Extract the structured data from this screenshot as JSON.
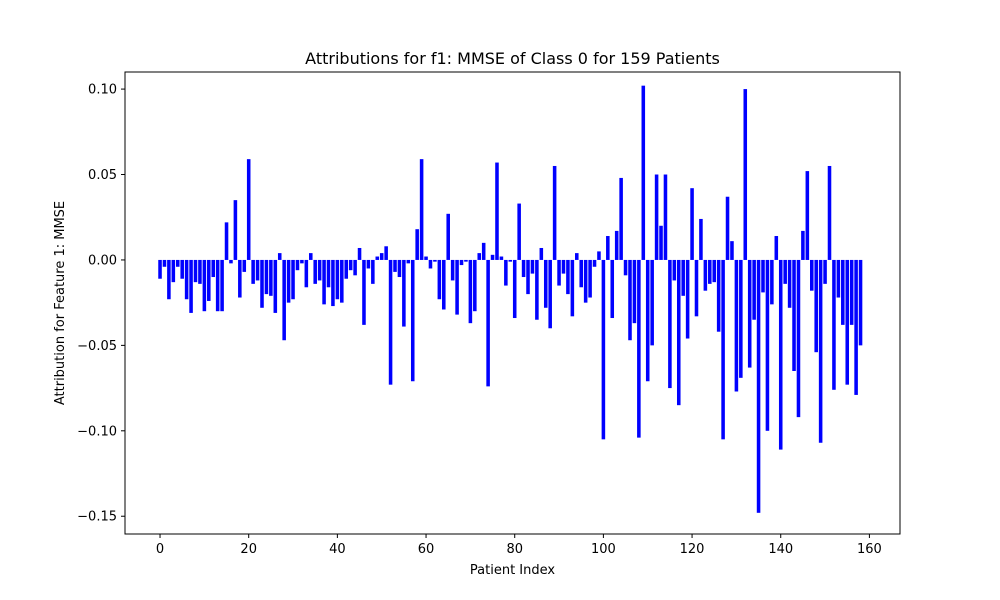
{
  "chart_data": {
    "type": "bar",
    "title": "Attributions for f1: MMSE of Class 0 for 159 Patients",
    "xlabel": "Patient Index",
    "ylabel": "Attribution for Feature 1: MMSE",
    "xlim": [
      -7.9,
      166.9
    ],
    "ylim": [
      -0.1604,
      0.11
    ],
    "xticks": [
      0,
      20,
      40,
      60,
      80,
      100,
      120,
      140,
      160
    ],
    "xtick_labels": [
      "0",
      "20",
      "40",
      "60",
      "80",
      "100",
      "120",
      "140",
      "160"
    ],
    "yticks": [
      -0.15,
      -0.1,
      -0.05,
      0.0,
      0.05,
      0.1
    ],
    "ytick_labels": [
      "−0.15",
      "−0.10",
      "−0.05",
      "0.00",
      "0.05",
      "0.10"
    ],
    "bar_color": "#0000ff",
    "grid": false,
    "x": [
      0,
      1,
      2,
      3,
      4,
      5,
      6,
      7,
      8,
      9,
      10,
      11,
      12,
      13,
      14,
      15,
      16,
      17,
      18,
      19,
      20,
      21,
      22,
      23,
      24,
      25,
      26,
      27,
      28,
      29,
      30,
      31,
      32,
      33,
      34,
      35,
      36,
      37,
      38,
      39,
      40,
      41,
      42,
      43,
      44,
      45,
      46,
      47,
      48,
      49,
      50,
      51,
      52,
      53,
      54,
      55,
      56,
      57,
      58,
      59,
      60,
      61,
      62,
      63,
      64,
      65,
      66,
      67,
      68,
      69,
      70,
      71,
      72,
      73,
      74,
      75,
      76,
      77,
      78,
      79,
      80,
      81,
      82,
      83,
      84,
      85,
      86,
      87,
      88,
      89,
      90,
      91,
      92,
      93,
      94,
      95,
      96,
      97,
      98,
      99,
      100,
      101,
      102,
      103,
      104,
      105,
      106,
      107,
      108,
      109,
      110,
      111,
      112,
      113,
      114,
      115,
      116,
      117,
      118,
      119,
      120,
      121,
      122,
      123,
      124,
      125,
      126,
      127,
      128,
      129,
      130,
      131,
      132,
      133,
      134,
      135,
      136,
      137,
      138,
      139,
      140,
      141,
      142,
      143,
      144,
      145,
      146,
      147,
      148,
      149,
      150,
      151,
      152,
      153,
      154,
      155,
      156,
      157,
      158
    ],
    "values": [
      -0.011,
      -0.004,
      -0.023,
      -0.013,
      -0.004,
      -0.011,
      -0.023,
      -0.031,
      -0.013,
      -0.014,
      -0.03,
      -0.024,
      -0.01,
      -0.03,
      -0.03,
      0.022,
      -0.002,
      0.035,
      -0.022,
      -0.007,
      0.059,
      -0.014,
      -0.012,
      -0.028,
      -0.02,
      -0.021,
      -0.031,
      0.004,
      -0.047,
      -0.025,
      -0.023,
      -0.006,
      -0.002,
      -0.016,
      0.004,
      -0.014,
      -0.012,
      -0.026,
      -0.016,
      -0.027,
      -0.023,
      -0.025,
      -0.011,
      -0.006,
      -0.009,
      0.007,
      -0.038,
      -0.005,
      -0.014,
      0.002,
      0.004,
      0.008,
      -0.073,
      -0.007,
      -0.01,
      -0.039,
      -0.002,
      -0.071,
      0.018,
      0.059,
      0.002,
      -0.005,
      -0.001,
      -0.023,
      -0.029,
      0.027,
      -0.012,
      -0.032,
      -0.003,
      -0.001,
      -0.037,
      -0.03,
      0.004,
      0.01,
      -0.074,
      0.003,
      0.057,
      0.002,
      -0.015,
      -0.001,
      -0.034,
      0.033,
      -0.01,
      -0.02,
      -0.008,
      -0.035,
      0.007,
      -0.028,
      -0.04,
      0.055,
      -0.015,
      -0.008,
      -0.02,
      -0.033,
      0.004,
      -0.016,
      -0.025,
      -0.022,
      -0.004,
      0.005,
      -0.105,
      0.014,
      -0.034,
      0.017,
      0.048,
      -0.009,
      -0.047,
      -0.037,
      -0.104,
      0.102,
      -0.071,
      -0.05,
      0.05,
      0.02,
      0.05,
      -0.075,
      -0.012,
      -0.085,
      -0.021,
      -0.046,
      0.042,
      -0.033,
      0.024,
      -0.018,
      -0.014,
      -0.013,
      -0.042,
      -0.105,
      0.037,
      0.011,
      -0.077,
      -0.069,
      0.1,
      -0.063,
      -0.035,
      -0.148,
      -0.019,
      -0.1,
      -0.026,
      0.014,
      -0.111,
      -0.014,
      -0.028,
      -0.065,
      -0.092,
      0.017,
      0.052,
      -0.018,
      -0.054,
      -0.107,
      -0.014,
      0.055,
      -0.076,
      -0.022,
      -0.038,
      -0.073,
      -0.038,
      -0.079,
      -0.05
    ]
  }
}
